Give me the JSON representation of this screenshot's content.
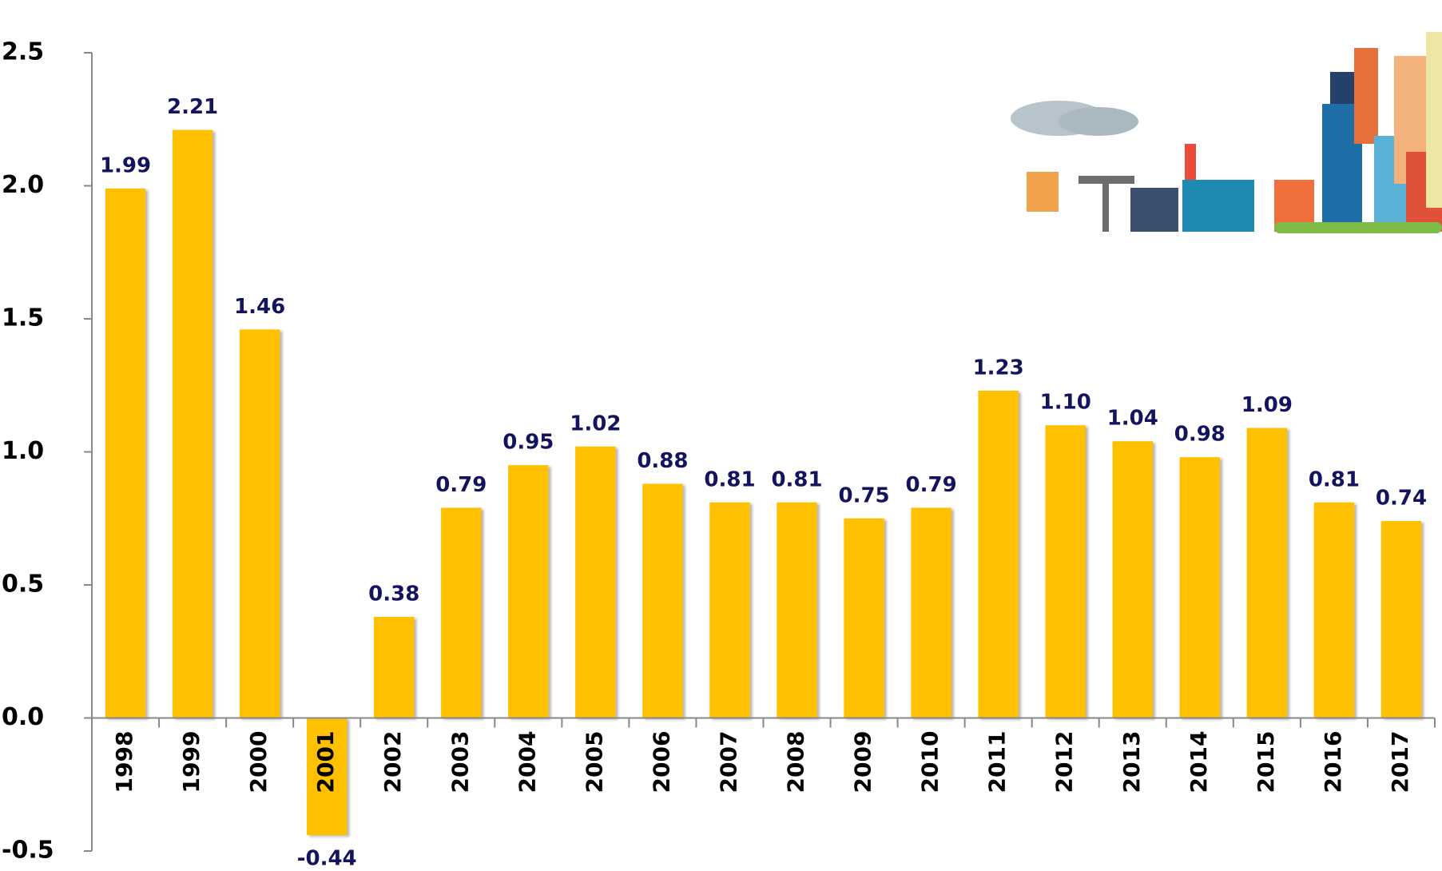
{
  "chart_data": {
    "type": "bar",
    "categories": [
      "1998",
      "1999",
      "2000",
      "2001",
      "2002",
      "2003",
      "2004",
      "2005",
      "2006",
      "2007",
      "2008",
      "2009",
      "2010",
      "2011",
      "2012",
      "2013",
      "2014",
      "2015",
      "2016",
      "2017"
    ],
    "values": [
      1.99,
      2.21,
      1.46,
      -0.44,
      0.38,
      0.79,
      0.95,
      1.02,
      0.88,
      0.81,
      0.81,
      0.75,
      0.79,
      1.23,
      1.1,
      1.04,
      0.98,
      1.09,
      0.81,
      0.74
    ],
    "value_labels": [
      "1.99",
      "2.21",
      "1.46",
      "-0.44",
      "0.38",
      "0.79",
      "0.95",
      "1.02",
      "0.88",
      "0.81",
      "0.81",
      "0.75",
      "0.79",
      "1.23",
      "1.10",
      "1.04",
      "0.98",
      "1.09",
      "0.81",
      "0.74"
    ],
    "color": "#FFC000",
    "ylim": [
      -0.5,
      2.5
    ],
    "yticks": [
      -0.5,
      0.5,
      {
        "value": 0,
        "label": "0.0"
      },
      {
        "value": 1,
        "label": "1.0"
      },
      1.5,
      {
        "value": 2,
        "label": "2.0"
      },
      2.5
    ],
    "grid": false
  }
}
